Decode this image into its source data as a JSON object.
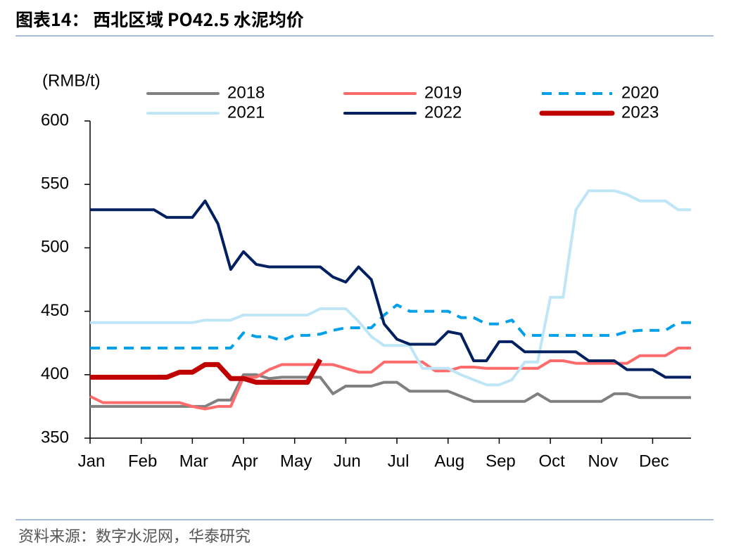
{
  "chart_data": {
    "type": "line",
    "title": "图表14：   西北区域 PO42.5 水泥均价",
    "y_label": "(RMB/t)",
    "source": "资料来源：数字水泥网，华泰研究",
    "categories": [
      "Jan",
      null,
      null,
      null,
      "Feb",
      null,
      null,
      null,
      "Mar",
      null,
      null,
      null,
      "Apr",
      null,
      null,
      null,
      "May",
      null,
      null,
      null,
      "Jun",
      null,
      null,
      null,
      "Jul",
      null,
      null,
      null,
      "Aug",
      null,
      null,
      null,
      "Sep",
      null,
      null,
      null,
      "Oct",
      null,
      null,
      null,
      "Nov",
      null,
      null,
      null,
      "Dec",
      null,
      null,
      null
    ],
    "ylim": [
      350,
      600
    ],
    "yticks": [
      350,
      400,
      450,
      500,
      550,
      600
    ],
    "grid": false,
    "legend": "top",
    "series": [
      {
        "name": "2018",
        "color": "#808080",
        "linewidth": 4,
        "dashed": false,
        "values": [
          375,
          375,
          375,
          375,
          375,
          375,
          375,
          375,
          375,
          375,
          380,
          380,
          400,
          400,
          397,
          398,
          398,
          398,
          398,
          385,
          391,
          391,
          391,
          394,
          394,
          387,
          387,
          387,
          387,
          383,
          379,
          379,
          379,
          379,
          379,
          385,
          379,
          379,
          379,
          379,
          379,
          385,
          385,
          382,
          382,
          382,
          382,
          382
        ]
      },
      {
        "name": "2019",
        "color": "#ff6b6b",
        "linewidth": 4,
        "dashed": false,
        "values": [
          383,
          378,
          378,
          378,
          378,
          378,
          378,
          378,
          375,
          373,
          375,
          375,
          398,
          398,
          404,
          408,
          408,
          408,
          408,
          408,
          405,
          402,
          402,
          410,
          410,
          410,
          410,
          403,
          403,
          406,
          406,
          405,
          405,
          405,
          405,
          405,
          411,
          411,
          409,
          409,
          409,
          409,
          409,
          415,
          415,
          415,
          421,
          421
        ]
      },
      {
        "name": "2020",
        "color": "#00a0e9",
        "linewidth": 4,
        "dashed": true,
        "values": [
          421,
          421,
          421,
          421,
          421,
          421,
          421,
          421,
          421,
          421,
          421,
          421,
          433,
          430,
          430,
          427,
          431,
          431,
          432,
          435,
          437,
          437,
          437,
          447,
          455,
          450,
          450,
          450,
          450,
          445,
          445,
          440,
          440,
          443,
          431,
          431,
          431,
          431,
          431,
          431,
          431,
          431,
          434,
          435,
          435,
          435,
          441,
          441
        ]
      },
      {
        "name": "2021",
        "color": "#bfe6f7",
        "linewidth": 4,
        "dashed": false,
        "values": [
          441,
          441,
          441,
          441,
          441,
          441,
          441,
          441,
          441,
          443,
          443,
          443,
          447,
          447,
          447,
          447,
          447,
          447,
          452,
          452,
          452,
          442,
          430,
          423,
          423,
          423,
          405,
          405,
          405,
          400,
          396,
          392,
          392,
          396,
          410,
          410,
          461,
          461,
          530,
          545,
          545,
          545,
          542,
          537,
          537,
          537,
          530,
          530
        ]
      },
      {
        "name": "2022",
        "color": "#002060",
        "linewidth": 4,
        "dashed": false,
        "values": [
          530,
          530,
          530,
          530,
          530,
          530,
          524,
          524,
          524,
          537,
          519,
          483,
          497,
          487,
          485,
          485,
          485,
          485,
          485,
          477,
          473,
          485,
          475,
          440,
          428,
          424,
          424,
          424,
          434,
          432,
          411,
          411,
          426,
          426,
          418,
          418,
          418,
          418,
          418,
          411,
          411,
          411,
          404,
          404,
          404,
          398,
          398,
          398
        ]
      },
      {
        "name": "2023",
        "color": "#c00000",
        "linewidth": 7,
        "dashed": false,
        "values": [
          398,
          398,
          398,
          398,
          398,
          398,
          398,
          402,
          402,
          408,
          408,
          397,
          397,
          394,
          394,
          394,
          394,
          394,
          412,
          null,
          null,
          null,
          null,
          null,
          null,
          null,
          null,
          null,
          null,
          null,
          null,
          null,
          null,
          null,
          null,
          null,
          null,
          null,
          null,
          null,
          null,
          null,
          null,
          null,
          null,
          null,
          null,
          null
        ]
      }
    ]
  }
}
